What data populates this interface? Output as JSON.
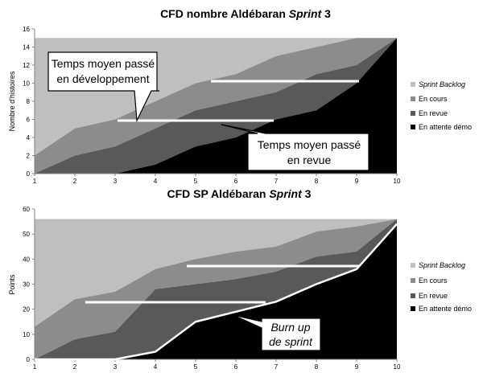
{
  "chart_data": [
    {
      "type": "area",
      "stacked": true,
      "title_main": "CFD nombre Aldébaran ",
      "title_italic": "Sprint",
      "title_suffix": " 3",
      "ylabel": "Nombre d'histoires",
      "x": [
        1,
        2,
        3,
        4,
        5,
        6,
        7,
        8,
        9,
        10
      ],
      "ylim": [
        0,
        16
      ],
      "yticks": [
        0,
        2,
        4,
        6,
        8,
        10,
        12,
        14,
        16
      ],
      "total": 15,
      "series": [
        {
          "name": "Sprint Backlog",
          "italic": true,
          "color": "#bfbfbf",
          "values": [
            13,
            10,
            9,
            7,
            5,
            4,
            2,
            1,
            0,
            0
          ]
        },
        {
          "name": "En cours",
          "italic": false,
          "color": "#8c8c8c",
          "values": [
            2,
            3,
            3,
            3,
            3,
            3,
            4,
            3,
            3,
            0
          ]
        },
        {
          "name": "En revue",
          "italic": false,
          "color": "#595959",
          "values": [
            0,
            2,
            3,
            4,
            4,
            4,
            3,
            4,
            2,
            0
          ]
        },
        {
          "name": "En attente démo",
          "italic": false,
          "color": "#000000",
          "values": [
            0,
            0,
            0,
            1,
            3,
            4,
            6,
            7,
            10,
            15
          ]
        }
      ],
      "callouts": [
        {
          "lines": [
            "Temps moyen passé",
            "en développement"
          ]
        },
        {
          "lines": [
            "Temps moyen passé",
            "en revue"
          ]
        }
      ]
    },
    {
      "type": "area",
      "stacked": true,
      "title_main": "CFD SP Aldébaran ",
      "title_italic": "Sprint",
      "title_suffix": " 3",
      "ylabel": "Points",
      "x": [
        1,
        2,
        3,
        4,
        5,
        6,
        7,
        8,
        9,
        10
      ],
      "ylim": [
        0,
        60
      ],
      "yticks": [
        0,
        10,
        20,
        30,
        40,
        50,
        60
      ],
      "total": 56,
      "series": [
        {
          "name": "Sprint Backlog",
          "italic": true,
          "color": "#bfbfbf",
          "values": [
            43,
            32,
            29,
            20,
            16,
            13,
            11,
            5,
            3,
            0
          ]
        },
        {
          "name": "En cours",
          "italic": false,
          "color": "#8c8c8c",
          "values": [
            13,
            16,
            16,
            8,
            10,
            11,
            10,
            10,
            10,
            0
          ]
        },
        {
          "name": "En revue",
          "italic": false,
          "color": "#595959",
          "values": [
            0,
            8,
            11,
            25,
            15,
            13,
            12,
            11,
            7,
            2
          ]
        },
        {
          "name": "En attente démo",
          "italic": false,
          "color": "#000000",
          "values": [
            0,
            0,
            0,
            3,
            15,
            19,
            23,
            30,
            36,
            54
          ]
        }
      ],
      "callouts": [
        {
          "lines": [
            "Burn up",
            "de sprint"
          ],
          "italic": true
        }
      ]
    }
  ]
}
